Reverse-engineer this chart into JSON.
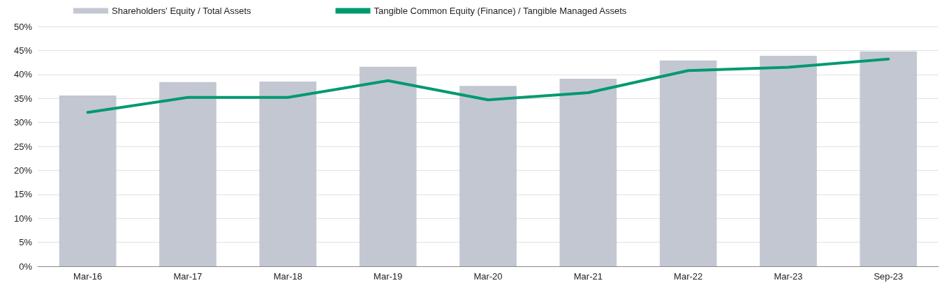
{
  "chart_data": {
    "type": "bar",
    "categories": [
      "Mar-16",
      "Mar-17",
      "Mar-18",
      "Mar-19",
      "Mar-20",
      "Mar-21",
      "Mar-22",
      "Mar-23",
      "Sep-23"
    ],
    "series": [
      {
        "name": "Shareholders' Equity / Total Assets",
        "color": "#c3c7d1",
        "values": [
          35.6,
          38.4,
          38.5,
          41.6,
          37.6,
          39.1,
          42.9,
          43.9,
          44.8
        ]
      },
      {
        "name": "Tangible Common Equity (Finance) / Tangible Managed Assets",
        "type": "line",
        "color": "#009970",
        "values": [
          32.1,
          35.2,
          35.2,
          38.7,
          34.7,
          36.2,
          40.8,
          41.5,
          43.2
        ]
      }
    ],
    "ylim": [
      0,
      50
    ],
    "yticks": [
      {
        "value": 0,
        "label": "0%"
      },
      {
        "value": 5,
        "label": "5%"
      },
      {
        "value": 10,
        "label": "10%"
      },
      {
        "value": 15,
        "label": "15%"
      },
      {
        "value": 20,
        "label": "20%"
      },
      {
        "value": 25,
        "label": "25%"
      },
      {
        "value": 30,
        "label": "30%"
      },
      {
        "value": 35,
        "label": "35%"
      },
      {
        "value": 40,
        "label": "40%"
      },
      {
        "value": 45,
        "label": "45%"
      },
      {
        "value": 50,
        "label": "50%"
      }
    ],
    "grid": "y",
    "legend": "top left",
    "marker": "none",
    "line_style": "solid"
  }
}
